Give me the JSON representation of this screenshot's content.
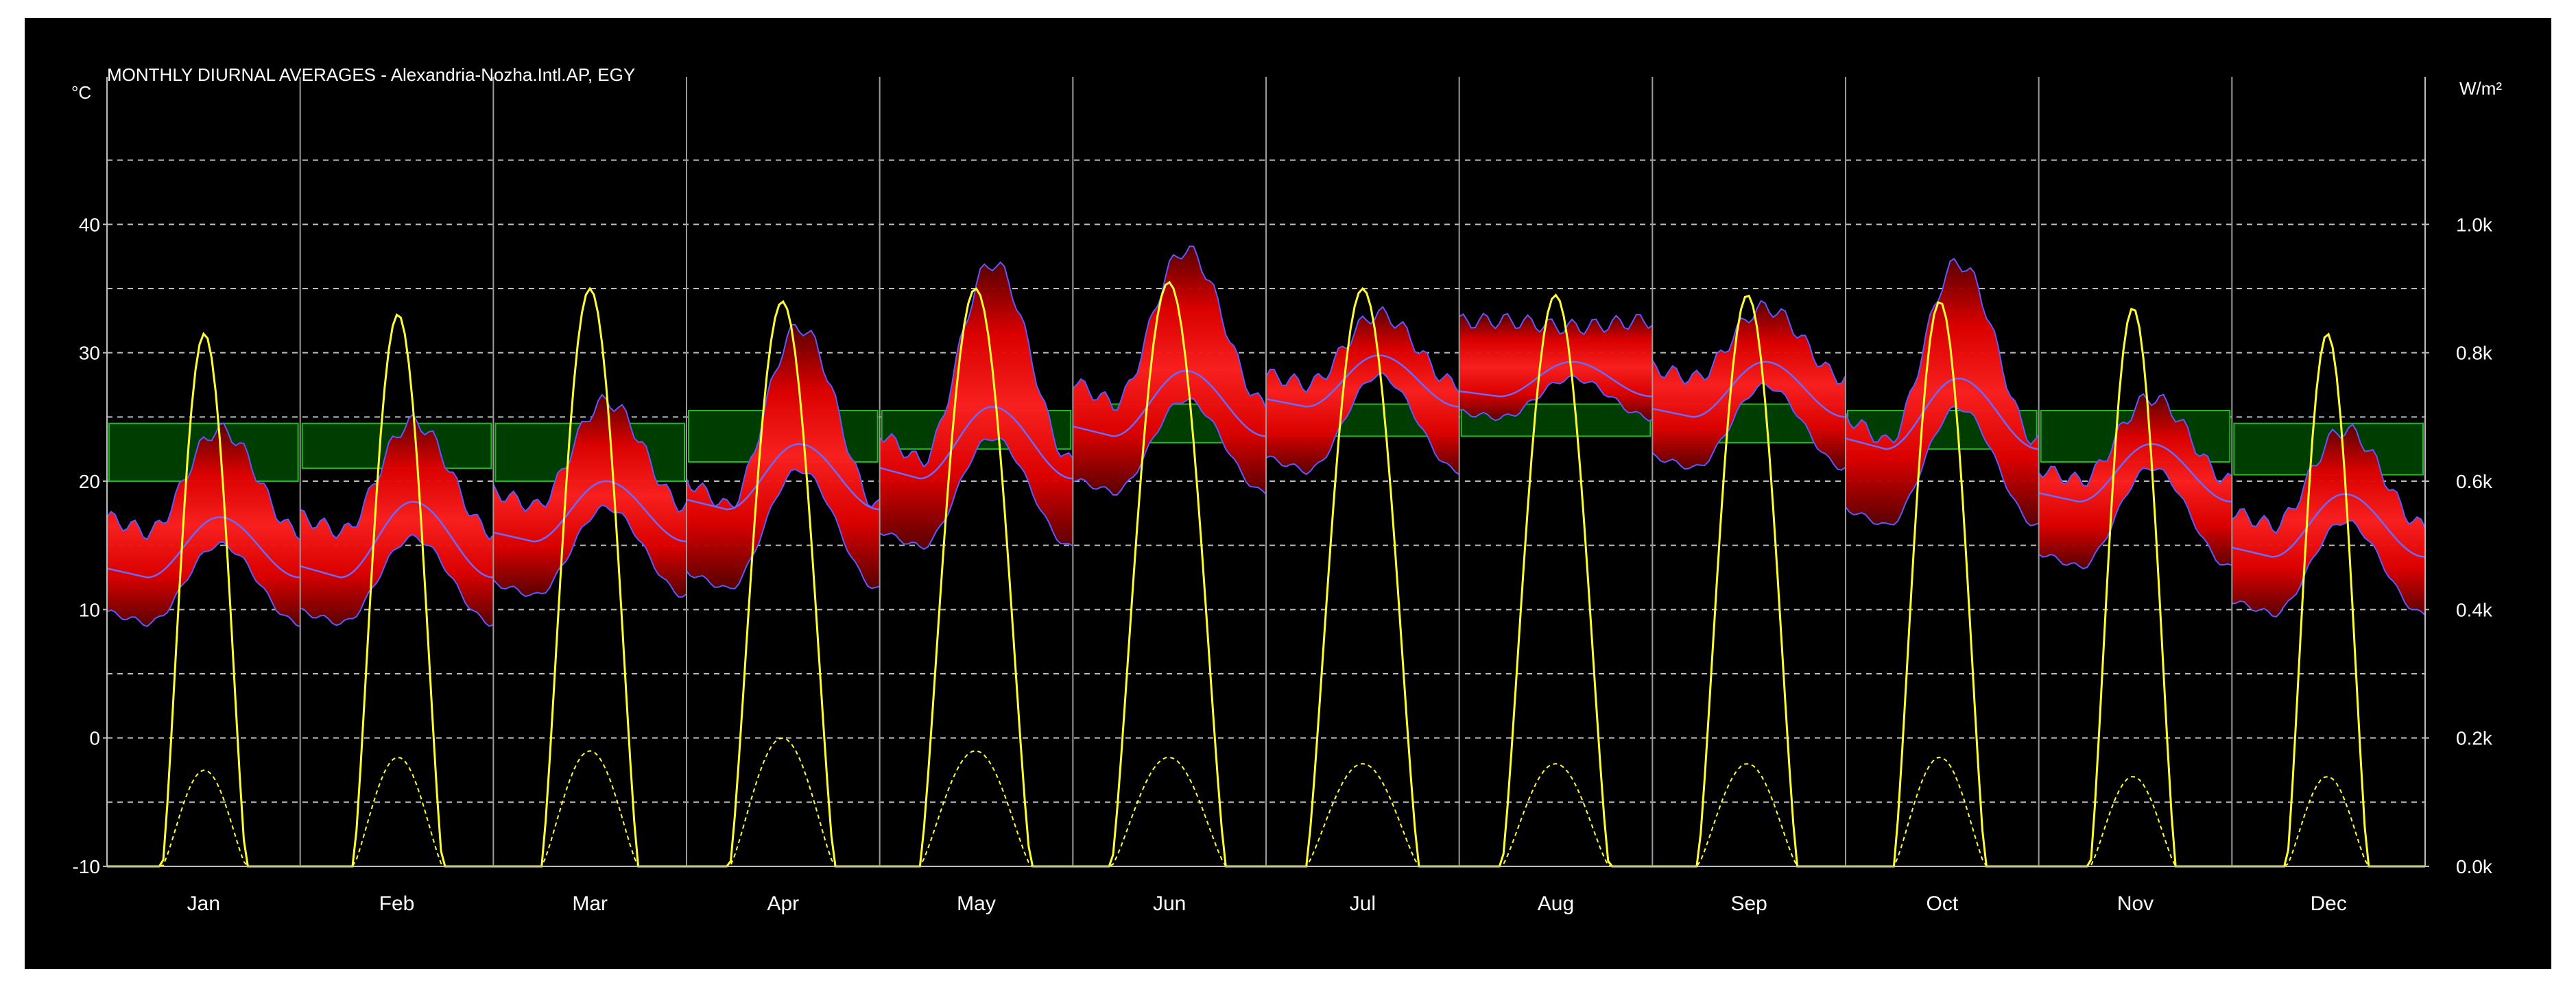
{
  "chart_data": {
    "type": "line",
    "title": "MONTHLY DIURNAL AVERAGES - Alexandria-Nozha.Intl.AP, EGY",
    "y_left_unit": "°C",
    "y_right_unit": "W/m²",
    "y_left_ticks": [
      "-10",
      "0",
      "10",
      "20",
      "30",
      "40"
    ],
    "y_right_ticks": [
      "0.0k",
      "0.2k",
      "0.4k",
      "0.6k",
      "0.8k",
      "1.0k"
    ],
    "ylim_left": [
      -10,
      50
    ],
    "ylim_right": [
      0,
      1.2
    ],
    "grid": true,
    "months": [
      "Jan",
      "Feb",
      "Mar",
      "Apr",
      "May",
      "Jun",
      "Jul",
      "Aug",
      "Sep",
      "Oct",
      "Nov",
      "Dec"
    ],
    "series": [
      {
        "values": [
          12.5,
          12.5,
          15.3,
          17.8,
          20.2,
          23.5,
          25.8,
          26.6,
          25.0,
          22.5,
          18.4,
          14.1
        ]
      },
      {
        "values": [
          17.2,
          18.4,
          20.0,
          22.9,
          25.8,
          28.6,
          29.8,
          29.3,
          29.3,
          28.0,
          22.9,
          19.0
        ]
      },
      {
        "values": [
          24.0,
          24.6,
          26.2,
          32.0,
          37.0,
          38.0,
          33.0,
          32.0,
          33.5,
          37.0,
          26.5,
          24.0
        ]
      },
      {
        "values": [
          8.0,
          8.0,
          10.0,
          10.0,
          13.5,
          18.0,
          19.5,
          24.5,
          20.0,
          15.0,
          12.0,
          8.5
        ]
      },
      {
        "values": [
          22.6,
          23.9,
          26.4,
          26.4,
          30.0,
          30.4,
          31.2,
          30.4,
          29.3,
          24.6,
          23.9,
          20.5
        ]
      },
      {
        "values": [
          0.6,
          0.62,
          0.6,
          0.63,
          0.65,
          0.66,
          0.67,
          0.67,
          0.66,
          0.65,
          0.63,
          0.61
        ]
      },
      {
        "values": [
          0.69,
          0.69,
          0.69,
          0.71,
          0.71,
          0.72,
          0.72,
          0.72,
          0.72,
          0.71,
          0.71,
          0.69
        ]
      },
      {
        "values": [
          0.83,
          0.86,
          0.9,
          0.88,
          0.9,
          0.91,
          0.9,
          0.89,
          0.89,
          0.88,
          0.87,
          0.83
        ]
      },
      {
        "values": [
          0.15,
          0.17,
          0.18,
          0.2,
          0.18,
          0.17,
          0.16,
          0.16,
          0.16,
          0.17,
          0.14,
          0.14
        ]
      }
    ]
  }
}
